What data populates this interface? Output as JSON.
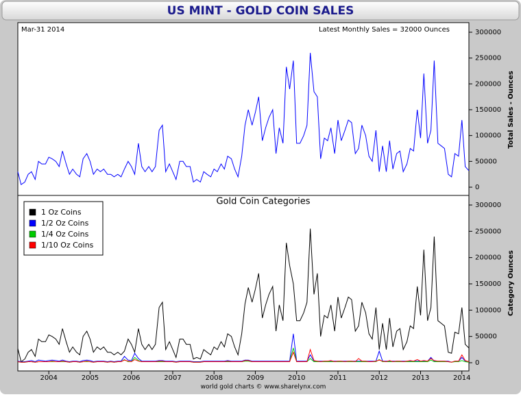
{
  "chart_data": [
    {
      "type": "line",
      "title": "US MINT - GOLD COIN SALES",
      "annotations": [
        "Mar-31 2014",
        "Latest Monthly Sales = 32000 Ounces"
      ],
      "y_label": "Total Sales - Ounces",
      "x": [
        2003.25,
        2003.33,
        2003.42,
        2003.5,
        2003.58,
        2003.67,
        2003.75,
        2003.83,
        2003.92,
        2004,
        2004.08,
        2004.17,
        2004.25,
        2004.33,
        2004.42,
        2004.5,
        2004.58,
        2004.67,
        2004.75,
        2004.83,
        2004.92,
        2005,
        2005.08,
        2005.17,
        2005.25,
        2005.33,
        2005.42,
        2005.5,
        2005.58,
        2005.67,
        2005.75,
        2005.83,
        2005.92,
        2006,
        2006.08,
        2006.17,
        2006.25,
        2006.33,
        2006.42,
        2006.5,
        2006.58,
        2006.67,
        2006.75,
        2006.83,
        2006.92,
        2007,
        2007.08,
        2007.17,
        2007.25,
        2007.33,
        2007.42,
        2007.5,
        2007.58,
        2007.67,
        2007.75,
        2007.83,
        2007.92,
        2008,
        2008.08,
        2008.17,
        2008.25,
        2008.33,
        2008.42,
        2008.5,
        2008.58,
        2008.67,
        2008.75,
        2008.83,
        2008.92,
        2009,
        2009.08,
        2009.17,
        2009.25,
        2009.33,
        2009.42,
        2009.5,
        2009.58,
        2009.67,
        2009.75,
        2009.83,
        2009.92,
        2010,
        2010.08,
        2010.17,
        2010.25,
        2010.33,
        2010.42,
        2010.5,
        2010.58,
        2010.67,
        2010.75,
        2010.83,
        2010.92,
        2011,
        2011.08,
        2011.17,
        2011.25,
        2011.33,
        2011.42,
        2011.5,
        2011.58,
        2011.67,
        2011.75,
        2011.83,
        2011.92,
        2012,
        2012.08,
        2012.17,
        2012.25,
        2012.33,
        2012.42,
        2012.5,
        2012.58,
        2012.67,
        2012.75,
        2012.83,
        2012.92,
        2013,
        2013.08,
        2013.17,
        2013.25,
        2013.33,
        2013.42,
        2013.5,
        2013.58,
        2013.67,
        2013.75,
        2013.83,
        2013.92,
        2014,
        2014.08,
        2014.17
      ],
      "series": [
        {
          "color": "#0000ff",
          "values": [
            30000,
            5000,
            10000,
            25000,
            30000,
            15000,
            50000,
            45000,
            45000,
            58000,
            55000,
            50000,
            40000,
            70000,
            45000,
            25000,
            35000,
            25000,
            20000,
            55000,
            65000,
            50000,
            25000,
            35000,
            30000,
            35000,
            25000,
            25000,
            20000,
            25000,
            20000,
            35000,
            50000,
            40000,
            25000,
            85000,
            40000,
            30000,
            40000,
            30000,
            40000,
            110000,
            120000,
            30000,
            45000,
            30000,
            15000,
            50000,
            50000,
            40000,
            40000,
            10000,
            15000,
            10000,
            30000,
            25000,
            20000,
            35000,
            30000,
            45000,
            35000,
            60000,
            55000,
            35000,
            20000,
            60000,
            120000,
            150000,
            120000,
            145000,
            175000,
            90000,
            115000,
            135000,
            150000,
            65000,
            115000,
            85000,
            233000,
            190000,
            245000,
            85000,
            85000,
            100000,
            120000,
            260000,
            185000,
            175000,
            55000,
            95000,
            90000,
            115000,
            65000,
            130000,
            90000,
            110000,
            130000,
            125000,
            65000,
            75000,
            120000,
            100000,
            60000,
            50000,
            110000,
            30000,
            80000,
            30000,
            90000,
            35000,
            65000,
            70000,
            30000,
            45000,
            75000,
            70000,
            150000,
            95000,
            220000,
            85000,
            110000,
            245000,
            85000,
            80000,
            75000,
            25000,
            20000,
            65000,
            60000,
            130000,
            40000,
            32000
          ]
        }
      ],
      "xlim": [
        2003.25,
        2014.17
      ],
      "ylim": [
        0,
        300000
      ],
      "yticks": [
        0,
        50000,
        100000,
        150000,
        200000,
        250000,
        300000
      ]
    },
    {
      "type": "line",
      "title": "Gold Coin Categories",
      "y_label": "Category Ounces",
      "source": "world gold charts © www.sharelynx.com",
      "legend": "top-left",
      "x": [
        2003.25,
        2003.33,
        2003.42,
        2003.5,
        2003.58,
        2003.67,
        2003.75,
        2003.83,
        2003.92,
        2004,
        2004.08,
        2004.17,
        2004.25,
        2004.33,
        2004.42,
        2004.5,
        2004.58,
        2004.67,
        2004.75,
        2004.83,
        2004.92,
        2005,
        2005.08,
        2005.17,
        2005.25,
        2005.33,
        2005.42,
        2005.5,
        2005.58,
        2005.67,
        2005.75,
        2005.83,
        2005.92,
        2006,
        2006.08,
        2006.17,
        2006.25,
        2006.33,
        2006.42,
        2006.5,
        2006.58,
        2006.67,
        2006.75,
        2006.83,
        2006.92,
        2007,
        2007.08,
        2007.17,
        2007.25,
        2007.33,
        2007.42,
        2007.5,
        2007.58,
        2007.67,
        2007.75,
        2007.83,
        2007.92,
        2008,
        2008.08,
        2008.17,
        2008.25,
        2008.33,
        2008.42,
        2008.5,
        2008.58,
        2008.67,
        2008.75,
        2008.83,
        2008.92,
        2009,
        2009.08,
        2009.17,
        2009.25,
        2009.33,
        2009.42,
        2009.5,
        2009.58,
        2009.67,
        2009.75,
        2009.83,
        2009.92,
        2010,
        2010.08,
        2010.17,
        2010.25,
        2010.33,
        2010.42,
        2010.5,
        2010.58,
        2010.67,
        2010.75,
        2010.83,
        2010.92,
        2011,
        2011.08,
        2011.17,
        2011.25,
        2011.33,
        2011.42,
        2011.5,
        2011.58,
        2011.67,
        2011.75,
        2011.83,
        2011.92,
        2012,
        2012.08,
        2012.17,
        2012.25,
        2012.33,
        2012.42,
        2012.5,
        2012.58,
        2012.67,
        2012.75,
        2012.83,
        2012.92,
        2013,
        2013.08,
        2013.17,
        2013.25,
        2013.33,
        2013.42,
        2013.5,
        2013.58,
        2013.67,
        2013.75,
        2013.83,
        2013.92,
        2014,
        2014.08,
        2014.17
      ],
      "series": [
        {
          "name": "1 Oz Coins",
          "color": "#000000",
          "values": [
            27000,
            2000,
            7000,
            20000,
            25000,
            12000,
            45000,
            40000,
            40000,
            53000,
            50000,
            45000,
            35000,
            65000,
            40000,
            20000,
            30000,
            20000,
            15000,
            50000,
            60000,
            45000,
            20000,
            30000,
            25000,
            30000,
            20000,
            20000,
            15000,
            20000,
            15000,
            22000,
            45000,
            35000,
            20000,
            65000,
            35000,
            25000,
            35000,
            25000,
            35000,
            105000,
            115000,
            25000,
            40000,
            25000,
            10000,
            45000,
            45000,
            35000,
            35000,
            7000,
            10000,
            7000,
            25000,
            20000,
            15000,
            30000,
            25000,
            40000,
            30000,
            55000,
            50000,
            30000,
            15000,
            55000,
            112000,
            143000,
            115000,
            140000,
            170000,
            85000,
            110000,
            130000,
            145000,
            60000,
            110000,
            80000,
            228000,
            185000,
            150000,
            80000,
            80000,
            95000,
            115000,
            255000,
            130000,
            170000,
            50000,
            90000,
            85000,
            110000,
            60000,
            125000,
            85000,
            105000,
            125000,
            120000,
            60000,
            70000,
            115000,
            95000,
            55000,
            45000,
            105000,
            25000,
            75000,
            25000,
            85000,
            30000,
            60000,
            65000,
            25000,
            40000,
            70000,
            65000,
            145000,
            90000,
            215000,
            80000,
            105000,
            240000,
            80000,
            75000,
            70000,
            20000,
            18000,
            58000,
            55000,
            105000,
            35000,
            28000
          ]
        },
        {
          "name": "1/2 Oz Coins",
          "color": "#0000ff",
          "values": [
            3000,
            2000,
            2000,
            3000,
            4000,
            2000,
            5000,
            4000,
            3000,
            4000,
            5000,
            4000,
            3000,
            5000,
            3000,
            2000,
            3000,
            3000,
            2000,
            4000,
            5000,
            4000,
            2000,
            3000,
            3000,
            3000,
            2000,
            3000,
            2000,
            3000,
            3000,
            12000,
            5000,
            4000,
            18000,
            8000,
            3000,
            3000,
            3000,
            3000,
            3000,
            4000,
            4000,
            3000,
            3000,
            3000,
            2000,
            3000,
            3000,
            3000,
            3000,
            2000,
            2000,
            2000,
            3000,
            3000,
            3000,
            3000,
            3000,
            3000,
            3000,
            4000,
            3000,
            3000,
            3000,
            3000,
            5000,
            5000,
            3000,
            3000,
            3000,
            3000,
            3000,
            3000,
            3000,
            3000,
            3000,
            3000,
            3000,
            3000,
            55000,
            3000,
            3000,
            3000,
            3000,
            15000,
            3000,
            3000,
            3000,
            3000,
            3000,
            3000,
            3000,
            3000,
            3000,
            3000,
            3000,
            3000,
            3000,
            3000,
            3000,
            3000,
            3000,
            3000,
            3000,
            22000,
            3000,
            3000,
            3000,
            3000,
            3000,
            3000,
            3000,
            3000,
            3000,
            3000,
            3000,
            3000,
            3000,
            3000,
            10000,
            3000,
            3000,
            3000,
            3000,
            3000,
            1000,
            3000,
            3000,
            10000,
            3000,
            2000
          ]
        },
        {
          "name": "1/4 Oz Coins",
          "color": "#00cc00",
          "values": [
            2000,
            1000,
            1000,
            2000,
            2000,
            1000,
            2000,
            2000,
            2000,
            2000,
            2000,
            2000,
            2000,
            2000,
            2000,
            1000,
            2000,
            2000,
            1000,
            2000,
            2000,
            2000,
            1000,
            2000,
            2000,
            2000,
            1000,
            2000,
            1000,
            2000,
            2000,
            6000,
            2000,
            2000,
            10000,
            4000,
            2000,
            2000,
            2000,
            2000,
            2000,
            2000,
            2000,
            2000,
            2000,
            2000,
            1000,
            2000,
            2000,
            2000,
            2000,
            1000,
            1000,
            1000,
            2000,
            2000,
            2000,
            2000,
            2000,
            2000,
            2000,
            2000,
            2000,
            2000,
            2000,
            2000,
            3000,
            3000,
            2000,
            2000,
            2000,
            2000,
            2000,
            2000,
            2000,
            2000,
            2000,
            2000,
            2000,
            2000,
            28000,
            2000,
            2000,
            2000,
            2000,
            8000,
            2000,
            2000,
            2000,
            2000,
            2000,
            2000,
            2000,
            2000,
            2000,
            2000,
            2000,
            2000,
            2000,
            2000,
            2000,
            2000,
            2000,
            2000,
            2000,
            6000,
            2000,
            2000,
            2000,
            2000,
            2000,
            2000,
            2000,
            2000,
            2000,
            2000,
            2000,
            2000,
            2000,
            2000,
            5000,
            2000,
            2000,
            2000,
            2000,
            2000,
            1000,
            2000,
            2000,
            4000,
            2000,
            1000
          ]
        },
        {
          "name": "1/10 Oz Coins",
          "color": "#ff0000",
          "values": [
            2000,
            1000,
            1000,
            2000,
            2000,
            1000,
            2000,
            2000,
            2000,
            2000,
            3000,
            2000,
            2000,
            3000,
            2000,
            1000,
            2000,
            2000,
            1000,
            2000,
            3000,
            2000,
            1000,
            2000,
            2000,
            2000,
            1000,
            2000,
            1000,
            2000,
            2000,
            5000,
            3000,
            2000,
            6000,
            3000,
            2000,
            2000,
            2000,
            2000,
            2000,
            3000,
            3000,
            2000,
            2000,
            2000,
            1000,
            2000,
            2000,
            2000,
            2000,
            1000,
            1000,
            1000,
            2000,
            2000,
            2000,
            2000,
            2000,
            2000,
            2000,
            3000,
            2000,
            2000,
            2000,
            2000,
            4000,
            4000,
            2000,
            2000,
            2000,
            2000,
            2000,
            2000,
            2000,
            2000,
            2000,
            2000,
            2000,
            2000,
            20000,
            2000,
            2000,
            2000,
            2000,
            25000,
            4000,
            3000,
            2000,
            3000,
            3000,
            4000,
            2000,
            3000,
            3000,
            2000,
            3000,
            3000,
            2000,
            8000,
            3000,
            3000,
            2000,
            2000,
            3000,
            5000,
            3000,
            2000,
            4000,
            2000,
            3000,
            3000,
            2000,
            3000,
            4000,
            3000,
            6000,
            3000,
            4000,
            3000,
            8000,
            4000,
            3000,
            3000,
            3000,
            2000,
            1000,
            3000,
            3000,
            15000,
            4000,
            2000
          ]
        }
      ],
      "xlim": [
        2003.25,
        2014.17
      ],
      "ylim": [
        0,
        300000
      ],
      "yticks": [
        0,
        50000,
        100000,
        150000,
        200000,
        250000,
        300000
      ],
      "xticks": [
        2004,
        2005,
        2006,
        2007,
        2008,
        2009,
        2010,
        2011,
        2012,
        2013,
        2014
      ]
    }
  ]
}
